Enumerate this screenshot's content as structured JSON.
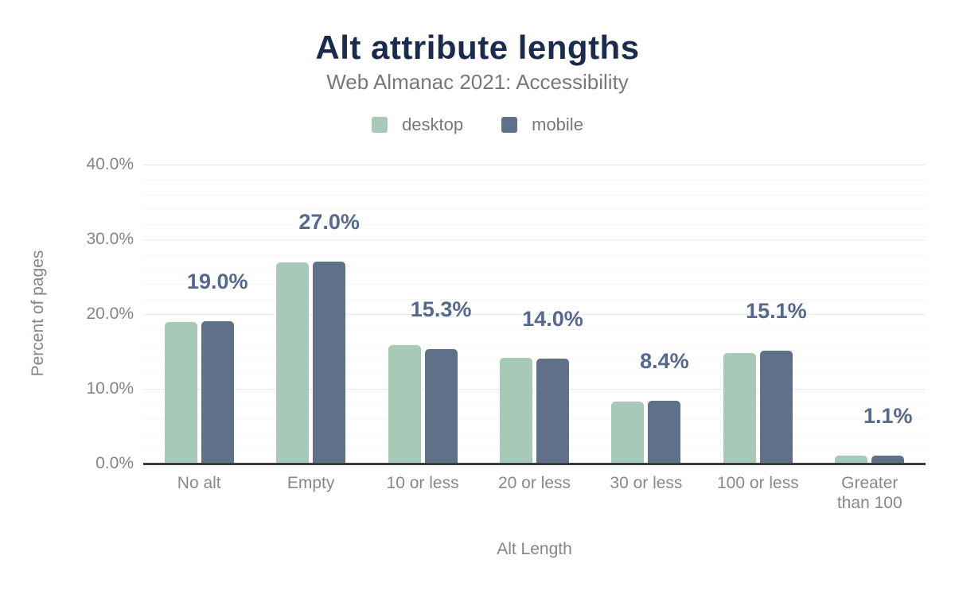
{
  "header": {
    "title": "Alt attribute lengths",
    "subtitle": "Web Almanac 2021: Accessibility"
  },
  "legend": [
    {
      "label": "desktop",
      "color": "#a6cab7"
    },
    {
      "label": "mobile",
      "color": "#5f7189"
    }
  ],
  "chart_data": {
    "type": "bar",
    "title": "Alt attribute lengths",
    "subtitle": "Web Almanac 2021: Accessibility",
    "categories": [
      "No alt",
      "Empty",
      "10 or less",
      "20 or less",
      "30 or less",
      "100 or less",
      "Greater than 100"
    ],
    "categories_display": [
      "No alt",
      "Empty",
      "10 or less",
      "20 or less",
      "30 or less",
      "100 or less",
      "Greater\nthan 100"
    ],
    "series": [
      {
        "name": "desktop",
        "color": "#a6cab7",
        "values": [
          18.9,
          26.9,
          15.9,
          14.1,
          8.3,
          14.8,
          1.1
        ]
      },
      {
        "name": "mobile",
        "color": "#5f7189",
        "values": [
          19.0,
          27.0,
          15.3,
          14.0,
          8.4,
          15.1,
          1.1
        ]
      }
    ],
    "data_labels": [
      "19.0%",
      "27.0%",
      "15.3%",
      "14.0%",
      "8.4%",
      "15.1%",
      "1.1%"
    ],
    "data_label_series": "mobile",
    "xlabel": "Alt Length",
    "ylabel": "Percent of pages",
    "ylim": [
      0,
      40
    ],
    "yticks": [
      {
        "value": 40,
        "label": "40.0%"
      },
      {
        "value": 30,
        "label": "30.0%"
      },
      {
        "value": 20,
        "label": "20.0%"
      },
      {
        "value": 10,
        "label": "10.0%"
      },
      {
        "value": 0,
        "label": "0.0%"
      }
    ],
    "grid": {
      "major_interval": 10,
      "minor_interval": 2,
      "orientation": "horizontal"
    },
    "legend_position": "top"
  },
  "colors": {
    "title": "#1a2b4e",
    "subtitle": "#75797d",
    "axis_text": "#81868c",
    "category_text": "#85898d",
    "data_label": "#55688d",
    "gridline_major": "#e9e9e9",
    "gridline_minor": "#f6f6f6",
    "axis_line": "#3d3d3d",
    "background": "#ffffff"
  }
}
